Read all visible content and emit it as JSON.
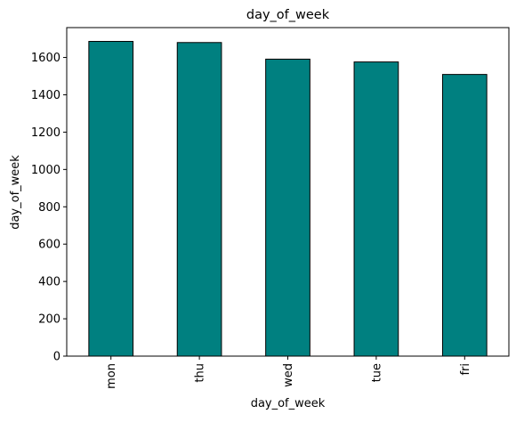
{
  "chart_data": {
    "type": "bar",
    "title": "day_of_week",
    "xlabel": "day_of_week",
    "ylabel": "day_of_week",
    "categories": [
      "mon",
      "thu",
      "wed",
      "tue",
      "fri"
    ],
    "values": [
      1686,
      1680,
      1591,
      1576,
      1509
    ],
    "ylim": [
      0,
      1760
    ],
    "yticks": [
      0,
      200,
      400,
      600,
      800,
      1000,
      1200,
      1400,
      1600
    ],
    "grid": false,
    "legend": "none",
    "bar_color": "#008080",
    "edge_color": "#000000"
  }
}
